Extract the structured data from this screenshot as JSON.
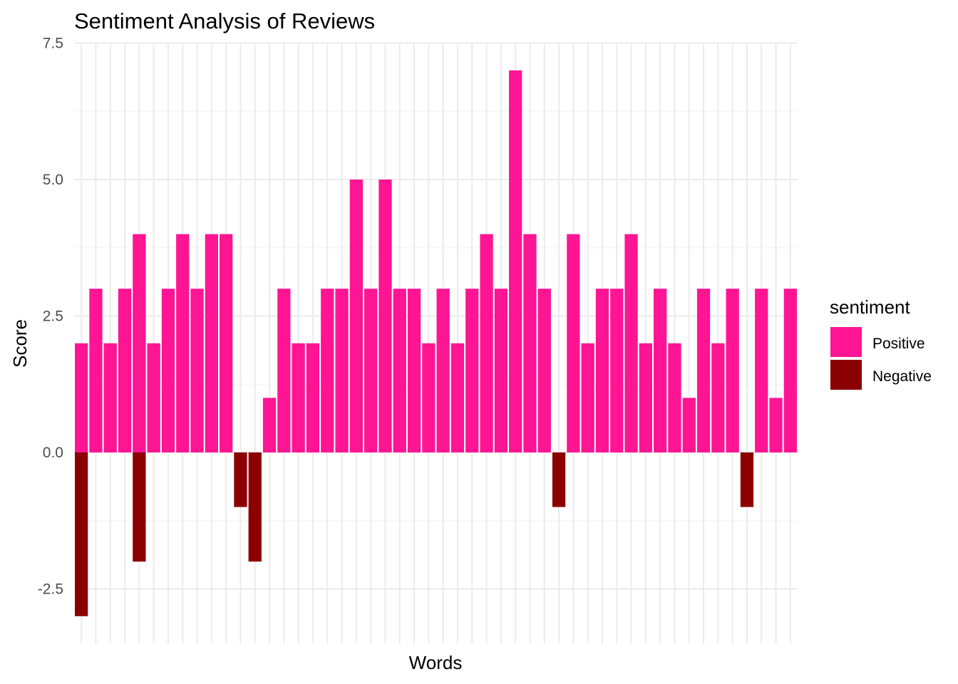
{
  "chart_data": {
    "type": "bar",
    "title": "Sentiment Analysis of Reviews",
    "xlabel": "Words",
    "ylabel": "Score",
    "ylim": [
      -3,
      7.5
    ],
    "yticks": [
      "-2.5",
      "0.0",
      "2.5",
      "5.0",
      "7.5"
    ],
    "ytick_values": [
      -2.5,
      0,
      2.5,
      5,
      7.5
    ],
    "grid": true,
    "x_tick_labels_shown": false,
    "legend": {
      "title": "sentiment",
      "position": "right",
      "entries": [
        {
          "label": "Positive",
          "color": "#FF1493"
        },
        {
          "label": "Negative",
          "color": "#8B0000"
        }
      ]
    },
    "category_count": 50,
    "series": [
      {
        "name": "Positive",
        "color": "#FF1493",
        "values": [
          2,
          3,
          2,
          3,
          4,
          2,
          3,
          4,
          3,
          4,
          4,
          0,
          0,
          1,
          3,
          2,
          2,
          3,
          3,
          5,
          3,
          5,
          3,
          3,
          2,
          3,
          2,
          3,
          4,
          3,
          7,
          4,
          3,
          0,
          4,
          2,
          3,
          3,
          4,
          2,
          3,
          2,
          1,
          3,
          2,
          3,
          0,
          3,
          1,
          3
        ]
      },
      {
        "name": "Negative",
        "color": "#8B0000",
        "values": [
          -3,
          0,
          0,
          0,
          -2,
          0,
          0,
          0,
          0,
          0,
          0,
          -1,
          -2,
          0,
          0,
          0,
          0,
          0,
          0,
          0,
          0,
          0,
          0,
          0,
          0,
          0,
          0,
          0,
          0,
          0,
          0,
          0,
          0,
          -1,
          0,
          0,
          0,
          0,
          0,
          0,
          0,
          0,
          0,
          0,
          0,
          0,
          -1,
          0,
          0,
          0
        ]
      }
    ]
  }
}
